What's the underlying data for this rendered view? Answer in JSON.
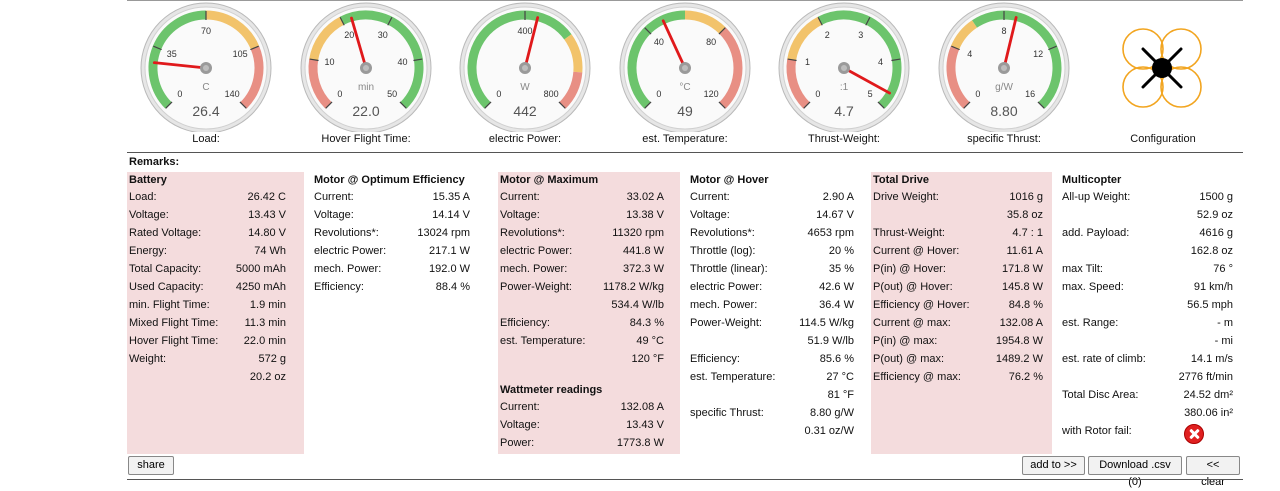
{
  "gauges": [
    {
      "label": "Load:",
      "unit": "C",
      "value": "26.4",
      "ticks": [
        "0",
        "35",
        "70",
        "105",
        "140"
      ],
      "min": 0,
      "max": 140,
      "reading": 26.42,
      "bands": [
        {
          "from": 0,
          "to": 70,
          "color": "#6cc46c"
        },
        {
          "from": 70,
          "to": 105,
          "color": "#f2c36b"
        },
        {
          "from": 105,
          "to": 140,
          "color": "#e88f84"
        }
      ]
    },
    {
      "label": "Hover Flight Time:",
      "unit": "min",
      "value": "22.0",
      "ticks": [
        "0",
        "10",
        "20",
        "30",
        "40",
        "50"
      ],
      "min": 0,
      "max": 50,
      "reading": 22.0,
      "bands": [
        {
          "from": 0,
          "to": 10,
          "color": "#e88f84"
        },
        {
          "from": 10,
          "to": 20,
          "color": "#f2c36b"
        },
        {
          "from": 20,
          "to": 50,
          "color": "#6cc46c"
        }
      ]
    },
    {
      "label": "electric Power:",
      "unit": "W",
      "value": "442",
      "ticks": [
        "0",
        "400",
        "800"
      ],
      "min": 0,
      "max": 800,
      "reading": 441.8,
      "bands": [
        {
          "from": 0,
          "to": 560,
          "color": "#6cc46c"
        },
        {
          "from": 560,
          "to": 680,
          "color": "#f2c36b"
        },
        {
          "from": 680,
          "to": 800,
          "color": "#e88f84"
        }
      ]
    },
    {
      "label": "est. Temperature:",
      "unit": "°C",
      "value": "49",
      "ticks": [
        "0",
        "40",
        "80",
        "120"
      ],
      "min": 0,
      "max": 120,
      "reading": 49,
      "bands": [
        {
          "from": 0,
          "to": 60,
          "color": "#6cc46c"
        },
        {
          "from": 60,
          "to": 80,
          "color": "#f2c36b"
        },
        {
          "from": 80,
          "to": 120,
          "color": "#e88f84"
        }
      ]
    },
    {
      "label": "Thrust-Weight:",
      "unit": ":1",
      "value": "4.7",
      "ticks": [
        "0",
        "1",
        "2",
        "3",
        "4",
        "5"
      ],
      "min": 0,
      "max": 5,
      "reading": 4.7,
      "bands": [
        {
          "from": 0,
          "to": 1,
          "color": "#e88f84"
        },
        {
          "from": 1,
          "to": 2,
          "color": "#f2c36b"
        },
        {
          "from": 2,
          "to": 5,
          "color": "#6cc46c"
        }
      ]
    },
    {
      "label": "specific Thrust:",
      "unit": "g/W",
      "value": "8.80",
      "ticks": [
        "0",
        "4",
        "8",
        "12",
        "16"
      ],
      "min": 0,
      "max": 16,
      "reading": 8.8,
      "bands": [
        {
          "from": 0,
          "to": 4,
          "color": "#e88f84"
        },
        {
          "from": 4,
          "to": 6,
          "color": "#f2c36b"
        },
        {
          "from": 6,
          "to": 16,
          "color": "#6cc46c"
        }
      ]
    }
  ],
  "configuration": {
    "label": "Configuration"
  },
  "remarks_label": "Remarks:",
  "battery": {
    "title": "Battery",
    "rows": [
      {
        "label": "Load:",
        "value": "26.42 C"
      },
      {
        "label": "Voltage:",
        "value": "13.43 V"
      },
      {
        "label": "Rated Voltage:",
        "value": "14.80 V"
      },
      {
        "label": "Energy:",
        "value": "74 Wh"
      },
      {
        "label": "Total Capacity:",
        "value": "5000 mAh"
      },
      {
        "label": "Used Capacity:",
        "value": "4250 mAh"
      },
      {
        "label": "min. Flight Time:",
        "value": "1.9 min"
      },
      {
        "label": "Mixed Flight Time:",
        "value": "11.3 min"
      },
      {
        "label": "Hover Flight Time:",
        "value": "22.0 min"
      },
      {
        "label": "Weight:",
        "value": "572 g"
      },
      {
        "label": "",
        "value": "20.2 oz"
      }
    ]
  },
  "motor_opt": {
    "title": "Motor @ Optimum Efficiency",
    "rows": [
      {
        "label": "Current:",
        "value": "15.35 A"
      },
      {
        "label": "Voltage:",
        "value": "14.14 V"
      },
      {
        "label": "Revolutions*:",
        "value": "13024 rpm"
      },
      {
        "label": "electric Power:",
        "value": "217.1 W"
      },
      {
        "label": "mech. Power:",
        "value": "192.0 W"
      },
      {
        "label": "Efficiency:",
        "value": "88.4 %"
      }
    ]
  },
  "motor_max": {
    "title": "Motor @ Maximum",
    "rows": [
      {
        "label": "Current:",
        "value": "33.02 A"
      },
      {
        "label": "Voltage:",
        "value": "13.38 V"
      },
      {
        "label": "Revolutions*:",
        "value": "11320 rpm"
      },
      {
        "label": "electric Power:",
        "value": "441.8 W"
      },
      {
        "label": "mech. Power:",
        "value": "372.3 W"
      },
      {
        "label": "Power-Weight:",
        "value": "1178.2 W/kg"
      },
      {
        "label": "",
        "value": "534.4 W/lb"
      },
      {
        "label": "Efficiency:",
        "value": "84.3 %"
      },
      {
        "label": "est. Temperature:",
        "value": "49 °C"
      },
      {
        "label": "",
        "value": "120 °F"
      }
    ]
  },
  "wattmeter": {
    "title": "Wattmeter readings",
    "rows": [
      {
        "label": "Current:",
        "value": "132.08 A"
      },
      {
        "label": "Voltage:",
        "value": "13.43 V"
      },
      {
        "label": "Power:",
        "value": "1773.8 W"
      }
    ]
  },
  "motor_hover": {
    "title": "Motor @ Hover",
    "rows": [
      {
        "label": "Current:",
        "value": "2.90 A"
      },
      {
        "label": "Voltage:",
        "value": "14.67 V"
      },
      {
        "label": "Revolutions*:",
        "value": "4653 rpm"
      },
      {
        "label": "Throttle (log):",
        "value": "20 %"
      },
      {
        "label": "Throttle (linear):",
        "value": "35 %"
      },
      {
        "label": "electric Power:",
        "value": "42.6 W"
      },
      {
        "label": "mech. Power:",
        "value": "36.4 W"
      },
      {
        "label": "Power-Weight:",
        "value": "114.5 W/kg"
      },
      {
        "label": "",
        "value": "51.9 W/lb"
      },
      {
        "label": "Efficiency:",
        "value": "85.6 %"
      },
      {
        "label": "est. Temperature:",
        "value": "27 °C"
      },
      {
        "label": "",
        "value": "81 °F"
      },
      {
        "label": "specific Thrust:",
        "value": "8.80 g/W"
      },
      {
        "label": "",
        "value": "0.31 oz/W"
      }
    ]
  },
  "total_drive": {
    "title": "Total Drive",
    "rows": [
      {
        "label": "Drive Weight:",
        "value": "1016 g"
      },
      {
        "label": "",
        "value": "35.8 oz"
      },
      {
        "label": "Thrust-Weight:",
        "value": "4.7 : 1"
      },
      {
        "label": "Current @ Hover:",
        "value": "11.61 A"
      },
      {
        "label": "P(in) @ Hover:",
        "value": "171.8 W"
      },
      {
        "label": "P(out) @ Hover:",
        "value": "145.8 W"
      },
      {
        "label": "Efficiency @ Hover:",
        "value": "84.8 %"
      },
      {
        "label": "Current @ max:",
        "value": "132.08 A"
      },
      {
        "label": "P(in) @ max:",
        "value": "1954.8 W"
      },
      {
        "label": "P(out) @ max:",
        "value": "1489.2 W"
      },
      {
        "label": "Efficiency @ max:",
        "value": "76.2 %"
      }
    ]
  },
  "multicopter": {
    "title": "Multicopter",
    "rows": [
      {
        "label": "All-up Weight:",
        "value": "1500 g"
      },
      {
        "label": "",
        "value": "52.9 oz"
      },
      {
        "label": "add. Payload:",
        "value": "4616 g"
      },
      {
        "label": "",
        "value": "162.8 oz"
      },
      {
        "label": "max Tilt:",
        "value": "76 °"
      },
      {
        "label": "max. Speed:",
        "value": "91 km/h"
      },
      {
        "label": "",
        "value": "56.5 mph"
      },
      {
        "label": "est. Range:",
        "value": "- m"
      },
      {
        "label": "",
        "value": "- mi"
      },
      {
        "label": "est. rate of climb:",
        "value": "14.1 m/s"
      },
      {
        "label": "",
        "value": "2776 ft/min"
      },
      {
        "label": "Total Disc Area:",
        "value": "24.52 dm²"
      },
      {
        "label": "",
        "value": "380.06 in²"
      },
      {
        "label": "with Rotor fail:",
        "value": ""
      }
    ],
    "rotor_fail_icon": "red-x-icon"
  },
  "buttons": {
    "share": "share",
    "add": "add to >>",
    "download": "Download .csv (0)",
    "clear": "<< clear"
  }
}
